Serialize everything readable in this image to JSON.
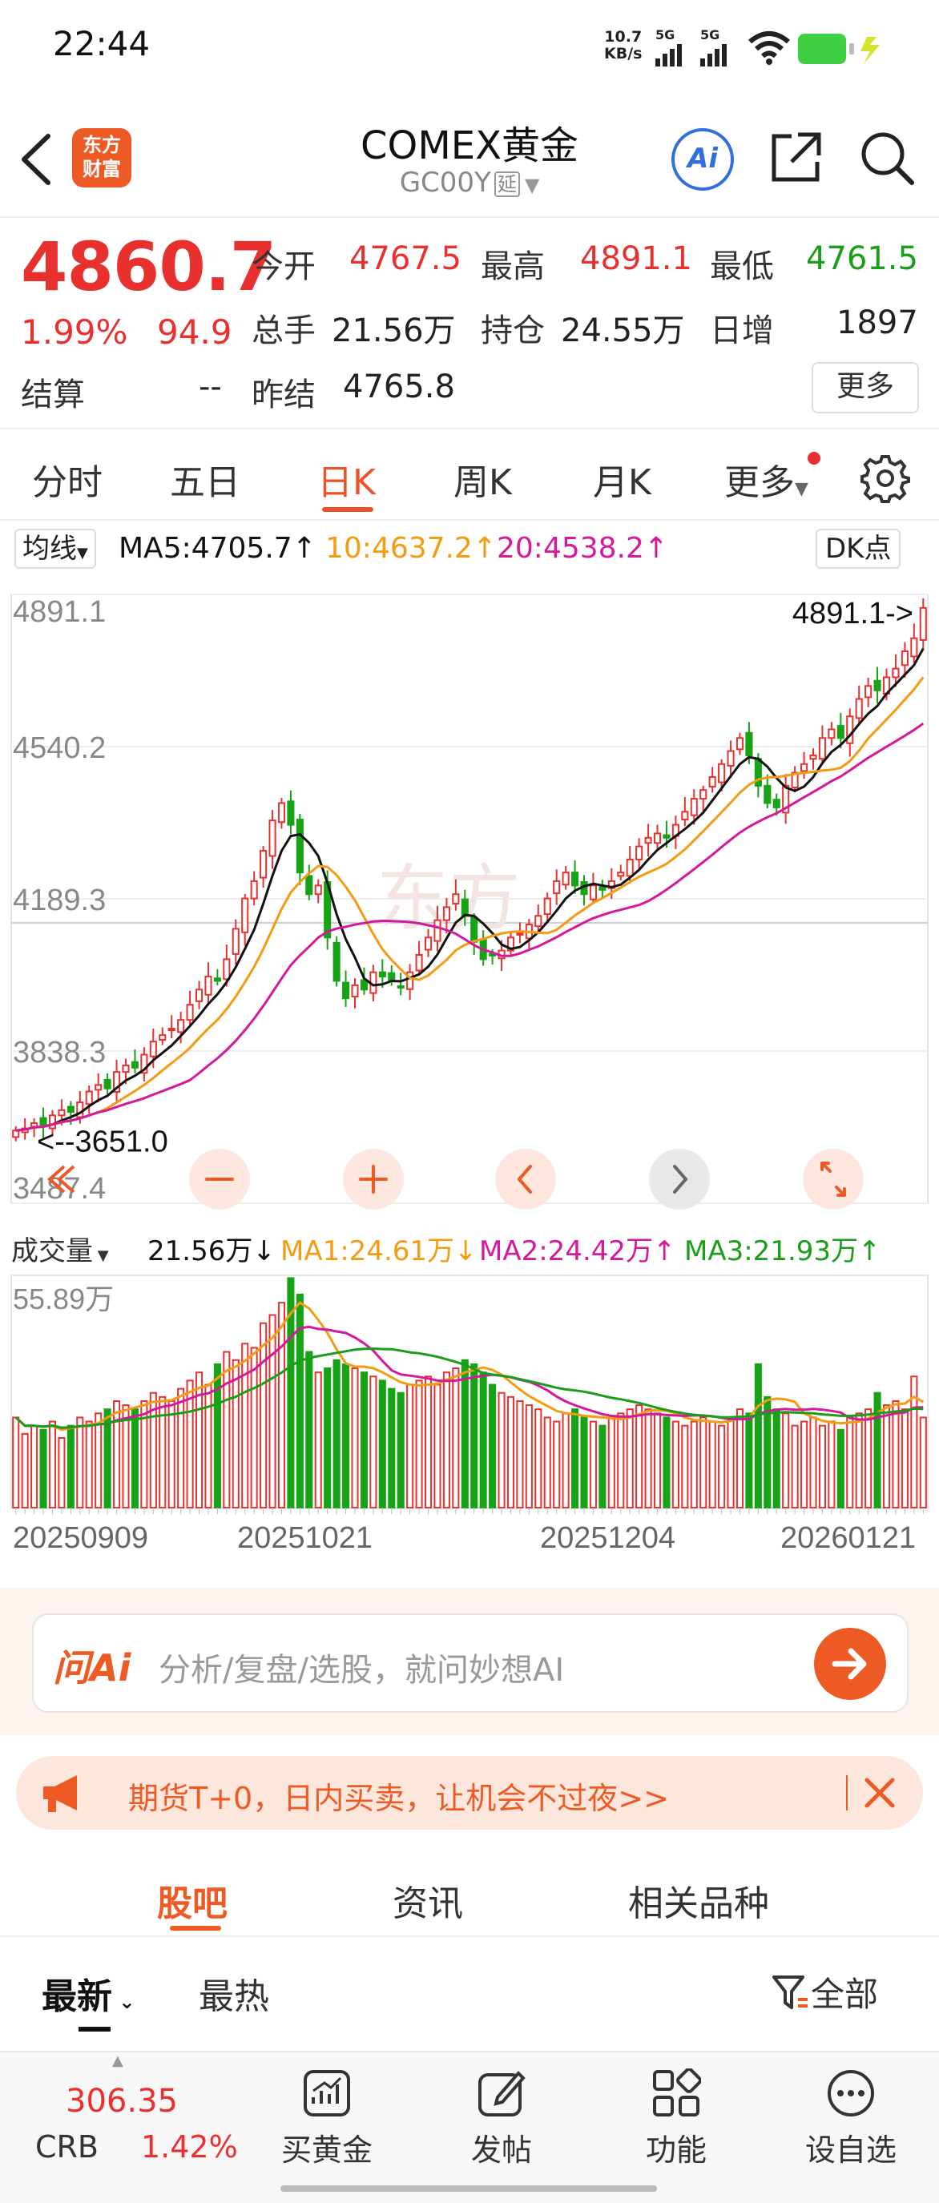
{
  "status_bar": {
    "time": "22:44",
    "net_speed_value": "10.7",
    "net_speed_unit": "KB/s",
    "signal1": "5G",
    "signal2": "5G",
    "battery_color": "#3ecf43"
  },
  "header": {
    "title": "COMEX黄金",
    "code": "GC00Y",
    "code_badge": "延",
    "logo_line1": "东方",
    "logo_line2": "财富",
    "ai_label": "Ai",
    "brand_color": "#ee5a24"
  },
  "quote": {
    "price": "4860.7",
    "change_pct": "1.99%",
    "change_abs": "94.9",
    "open_label": "今开",
    "open": "4767.5",
    "high_label": "最高",
    "high": "4891.1",
    "low_label": "最低",
    "low": "4761.5",
    "volume_label": "总手",
    "volume": "21.56万",
    "oi_label": "持仓",
    "oi": "24.55万",
    "daily_inc_label": "日增",
    "daily_inc": "1897",
    "settle_label": "结算",
    "settle": "--",
    "prev_settle_label": "昨结",
    "prev_settle": "4765.8",
    "more_label": "更多"
  },
  "period_tabs": {
    "items": [
      "分时",
      "五日",
      "日K",
      "周K",
      "月K",
      "更多"
    ],
    "active": "日K"
  },
  "ma_row": {
    "mode": "均线",
    "ma5": "MA5:4705.7",
    "ma10": "10:4637.2",
    "ma20": "20:4538.2",
    "dk_label": "DK点",
    "ma5_color": "#111111",
    "ma10_color": "#f39c12",
    "ma20_color": "#d6189b"
  },
  "chart_data": {
    "type": "candlestick",
    "y_ticks": [
      "4891.1",
      "4540.2",
      "4189.3",
      "3838.3",
      "3487.4"
    ],
    "y_range": [
      3487.4,
      4891.1
    ],
    "max_marker": "4891.1->",
    "min_marker": "<--3651.0",
    "x_labels": [
      "20250909",
      "20251021",
      "20251204",
      "20260121"
    ],
    "volume_header": {
      "label": "成交量",
      "current": "21.56万↓",
      "ma1": "MA1:24.61万↓",
      "ma2": "MA2:24.42万↑",
      "ma3": "MA3:21.93万↑"
    },
    "volume_max": "55.89万",
    "close": [
      3655,
      3660,
      3672,
      3668,
      3690,
      3702,
      3698,
      3720,
      3745,
      3760,
      3752,
      3790,
      3805,
      3800,
      3830,
      3860,
      3875,
      3890,
      3910,
      3945,
      3980,
      4010,
      4000,
      4050,
      4120,
      4190,
      4230,
      4300,
      4370,
      4410,
      4360,
      4250,
      4200,
      4220,
      4100,
      4000,
      3960,
      3990,
      3980,
      4020,
      4010,
      4000,
      3985,
      4020,
      4060,
      4100,
      4140,
      4170,
      4200,
      4150,
      4090,
      4050,
      4060,
      4070,
      4100,
      4110,
      4130,
      4150,
      4190,
      4230,
      4250,
      4220,
      4200,
      4220,
      4210,
      4230,
      4250,
      4280,
      4310,
      4330,
      4340,
      4330,
      4360,
      4390,
      4420,
      4440,
      4470,
      4500,
      4530,
      4560,
      4520,
      4450,
      4410,
      4400,
      4450,
      4480,
      4500,
      4520,
      4560,
      4580,
      4560,
      4610,
      4650,
      4680,
      4670,
      4700,
      4720,
      4760,
      4790,
      4860
    ],
    "volume": [
      22,
      18,
      20,
      19,
      21,
      17,
      20,
      22,
      21,
      23,
      24,
      26,
      25,
      24,
      26,
      28,
      27,
      26,
      29,
      31,
      33,
      30,
      35,
      38,
      36,
      40,
      39,
      45,
      47,
      50,
      56,
      52,
      38,
      33,
      34,
      36,
      35,
      34,
      33,
      32,
      31,
      29,
      28,
      30,
      31,
      32,
      30,
      33,
      34,
      36,
      35,
      33,
      30,
      28,
      27,
      26,
      25,
      24,
      22,
      21,
      23,
      24,
      22,
      21,
      20,
      22,
      23,
      24,
      25,
      24,
      23,
      22,
      21,
      20,
      21,
      22,
      21,
      20,
      22,
      24,
      23,
      35,
      27,
      24,
      23,
      20,
      21,
      22,
      20,
      21,
      19,
      22,
      23,
      24,
      28,
      25,
      26,
      24,
      32,
      22
    ],
    "xlabel": "",
    "ylabel": ""
  },
  "ai_box": {
    "logo": "问Ai",
    "placeholder": "分析/复盘/选股，就问妙想AI"
  },
  "ad": {
    "text": "期货T+0，日内买卖，让机会不过夜>>"
  },
  "section_tabs": {
    "items": [
      "股吧",
      "资讯",
      "相关品种"
    ],
    "active": "股吧"
  },
  "sort_row": {
    "latest": "最新",
    "hot": "最热",
    "filter": "全部"
  },
  "bottom_bar": {
    "index_value": "306.35",
    "index_name": "CRB",
    "index_pct": "1.42%",
    "buy": "买黄金",
    "post": "发帖",
    "functions": "功能",
    "watchlist": "设自选"
  }
}
